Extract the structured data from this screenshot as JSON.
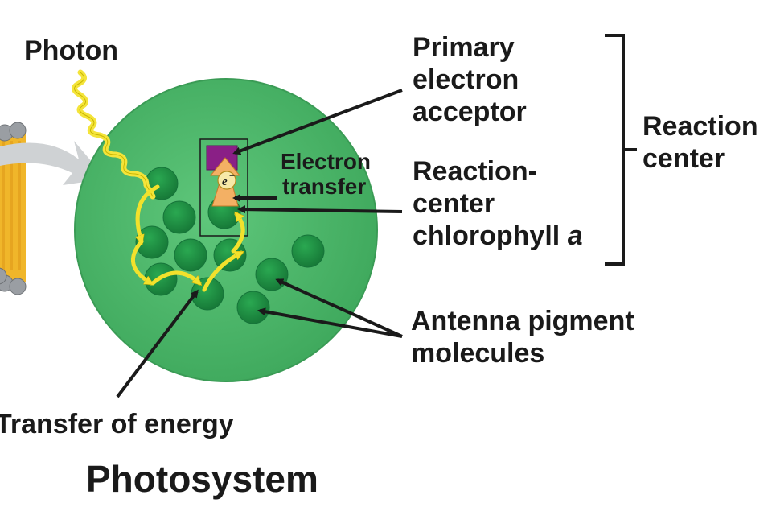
{
  "labels": {
    "photon": "Photon",
    "primary_acceptor": [
      "Primary",
      "electron",
      "acceptor"
    ],
    "reaction_center": [
      "Reaction",
      "center"
    ],
    "electron_transfer": [
      "Electron",
      "transfer"
    ],
    "rc_chlorophyll": [
      "Reaction-",
      "center",
      "chlorophyll"
    ],
    "rc_chlorophyll_letter": "a",
    "antenna": [
      "Antenna pigment",
      "molecules"
    ],
    "transfer_energy": "Transfer of energy",
    "title": "Photosystem",
    "electron_symbol": "e",
    "electron_charge": "−"
  },
  "colors": {
    "photosystem_fill": "#4cb86a",
    "pigment": "#1e9444",
    "pigment_edge": "#16743a",
    "energy_path": "#f2e12c",
    "photon_wave": "#f4e43a",
    "acceptor": "#8a1f86",
    "membrane_lipid": "#f0b62a",
    "membrane_head": "#9a9ea3",
    "arrow_text": "#1a1a1a"
  }
}
